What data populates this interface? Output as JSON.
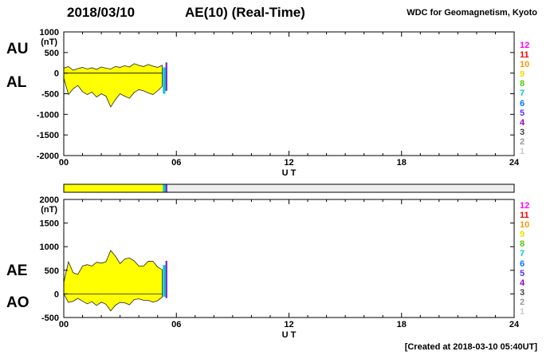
{
  "header": {
    "date": "2018/03/10",
    "title": "AE(10) (Real-Time)",
    "source": "WDC for Geomagnetism, Kyoto"
  },
  "footer": {
    "created": "[Created at 2018-03-10 05:40UT]"
  },
  "legend": {
    "station_counts": [
      12,
      11,
      10,
      9,
      8,
      7,
      6,
      5,
      4,
      3,
      2,
      1
    ],
    "colors": [
      "#ff00ff",
      "#ff0000",
      "#ff9900",
      "#f0e000",
      "#55cc00",
      "#00cccc",
      "#0077ff",
      "#5533ff",
      "#9900bb",
      "#444444",
      "#999999",
      "#cccccc"
    ]
  },
  "station_bar": {
    "empty_color": "#eeeeee",
    "segments": [
      {
        "start": 0,
        "end": 5.28,
        "color": "#ffff00"
      },
      {
        "start": 5.28,
        "end": 5.42,
        "color": "#00cccc"
      },
      {
        "start": 5.42,
        "end": 5.52,
        "color": "#7733cc"
      }
    ]
  },
  "chart_data": [
    {
      "type": "area",
      "panel": "AU-AL",
      "left_labels": [
        "AU",
        "AL"
      ],
      "ylabel": "(nT)",
      "xlabel": "U T",
      "ylim": [
        -2000,
        1000
      ],
      "yticks": [
        1000,
        500,
        0,
        -500,
        -1000,
        -1500,
        -2000
      ],
      "xlim": [
        0,
        24
      ],
      "xtick_values": [
        0,
        6,
        12,
        18,
        24
      ],
      "xtick_labels": [
        "00",
        "06",
        "12",
        "18",
        "24"
      ],
      "fill_color": "#ffff00",
      "x": [
        0,
        0.25,
        0.5,
        0.75,
        1,
        1.25,
        1.5,
        1.75,
        2,
        2.25,
        2.5,
        2.75,
        3,
        3.25,
        3.5,
        3.75,
        4,
        4.25,
        4.5,
        4.75,
        5,
        5.25
      ],
      "series": [
        {
          "name": "AU",
          "values": [
            120,
            160,
            70,
            110,
            140,
            100,
            130,
            90,
            150,
            120,
            100,
            160,
            140,
            180,
            150,
            230,
            190,
            160,
            210,
            170,
            140,
            190
          ]
        },
        {
          "name": "AL",
          "values": [
            -120,
            -520,
            -380,
            -300,
            -450,
            -520,
            -460,
            -580,
            -500,
            -560,
            -820,
            -640,
            -500,
            -560,
            -610,
            -470,
            -400,
            -430,
            -480,
            -520,
            -430,
            -320
          ]
        }
      ],
      "end_bars": [
        {
          "x": 5.28,
          "w": 0.14,
          "y0": -500,
          "y1": 140,
          "color": "#00cccc"
        },
        {
          "x": 5.42,
          "w": 0.1,
          "y0": -430,
          "y1": 260,
          "color": "#7733cc"
        }
      ]
    },
    {
      "type": "area",
      "panel": "AE-AO",
      "left_labels": [
        "AE",
        "AO"
      ],
      "ylabel": "(nT)",
      "xlabel": "U T",
      "ylim": [
        -500,
        2000
      ],
      "yticks": [
        2000,
        1500,
        1000,
        500,
        0,
        -500
      ],
      "xlim": [
        0,
        24
      ],
      "xtick_values": [
        0,
        6,
        12,
        18,
        24
      ],
      "xtick_labels": [
        "00",
        "06",
        "12",
        "18",
        "24"
      ],
      "fill_color": "#ffff00",
      "x": [
        0,
        0.25,
        0.5,
        0.75,
        1,
        1.25,
        1.5,
        1.75,
        2,
        2.25,
        2.5,
        2.75,
        3,
        3.25,
        3.5,
        3.75,
        4,
        4.25,
        4.5,
        4.75,
        5,
        5.25
      ],
      "series": [
        {
          "name": "AE",
          "values": [
            240,
            680,
            450,
            410,
            590,
            620,
            590,
            670,
            650,
            680,
            920,
            800,
            640,
            740,
            760,
            700,
            590,
            590,
            690,
            690,
            570,
            510
          ]
        },
        {
          "name": "AO",
          "values": [
            0,
            -180,
            -155,
            -95,
            -155,
            -210,
            -165,
            -245,
            -175,
            -220,
            -360,
            -240,
            -180,
            -190,
            -230,
            -120,
            -105,
            -135,
            -135,
            -175,
            -145,
            -65
          ]
        }
      ],
      "end_bars": [
        {
          "x": 5.28,
          "w": 0.14,
          "y0": -60,
          "y1": 610,
          "color": "#00cccc"
        },
        {
          "x": 5.42,
          "w": 0.1,
          "y0": -90,
          "y1": 700,
          "color": "#7733cc"
        }
      ]
    }
  ]
}
